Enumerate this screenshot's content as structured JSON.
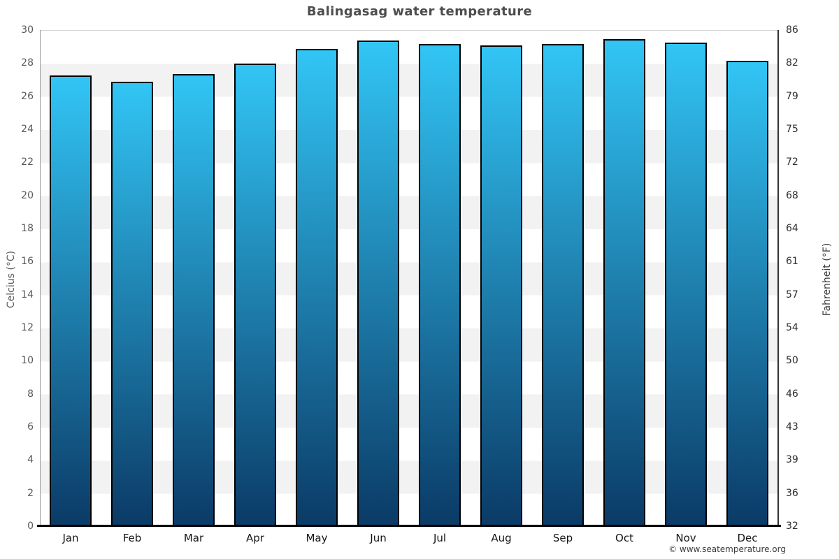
{
  "title": "Balingasag water temperature",
  "footer": {
    "credit": "© www.seatemperature.org"
  },
  "chart_data": {
    "type": "bar",
    "title": "Balingasag water temperature",
    "categories": [
      "Jan",
      "Feb",
      "Mar",
      "Apr",
      "May",
      "Jun",
      "Jul",
      "Aug",
      "Sep",
      "Oct",
      "Nov",
      "Dec"
    ],
    "values": [
      27.3,
      26.9,
      27.4,
      28.0,
      28.9,
      29.4,
      29.2,
      29.1,
      29.2,
      29.5,
      29.3,
      28.2
    ],
    "unit": "°C",
    "ylabel_left": "Celcius (°C)",
    "ylabel_right": "Fahrenheit (°F)",
    "ylim": [
      0,
      30
    ],
    "yticks_celsius": [
      0,
      2,
      4,
      6,
      8,
      10,
      12,
      14,
      16,
      18,
      20,
      22,
      24,
      26,
      28,
      30
    ],
    "yticks_fahrenheit_labels": [
      "32",
      "36",
      "39",
      "43",
      "46",
      "50",
      "54",
      "57",
      "61",
      "64",
      "68",
      "72",
      "75",
      "79",
      "82",
      "86"
    ],
    "xlabel": "",
    "legend": "none",
    "grid": "alternating horizontal bands every 2°C",
    "colors": {
      "bar_gradient_top": "#32c5f5",
      "bar_gradient_bottom": "#0b3a66",
      "bar_border": "#000000",
      "band_gray": "#f2f2f2",
      "band_white": "#ffffff",
      "title_text": "#4d4d4d",
      "axis_text": "#58595b"
    }
  }
}
